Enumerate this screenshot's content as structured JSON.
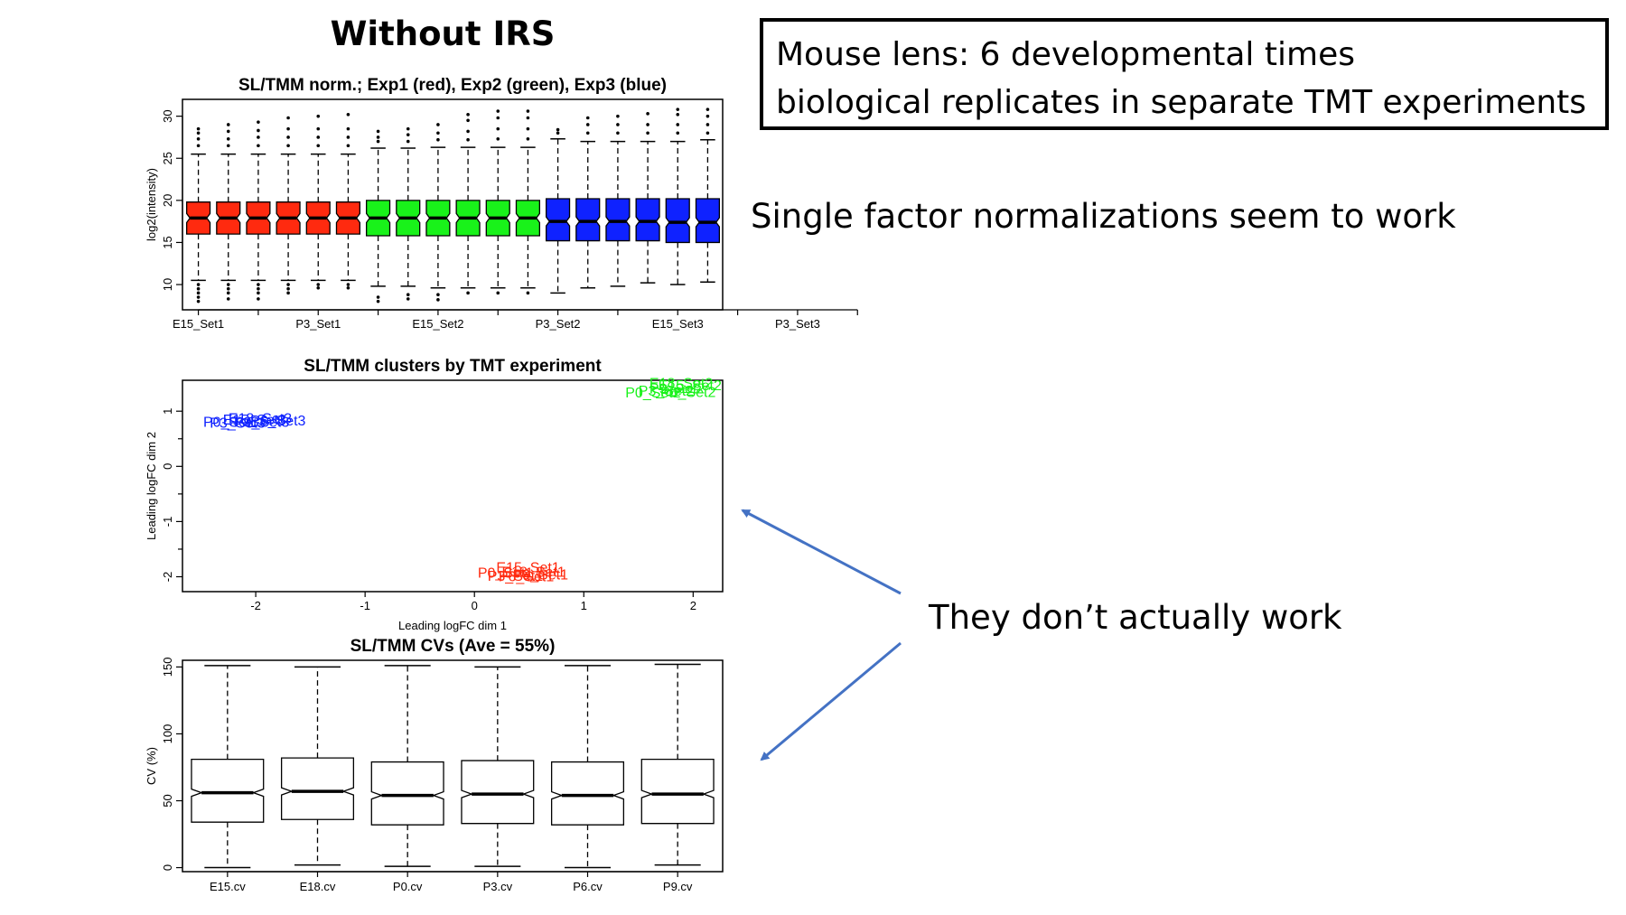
{
  "slide": {
    "title": "Without IRS",
    "box_lines": [
      "Mouse lens: 6 developmental times",
      "biological replicates in separate TMT experiments"
    ],
    "note": "Single factor normalizations seem to work",
    "callout": "They don’t actually work",
    "arrow_color": "#4472C4"
  },
  "chart_data": [
    {
      "type": "boxplot",
      "title": "SL/TMM norm.; Exp1 (red), Exp2 (green), Exp3 (blue)",
      "xlabel": "",
      "ylabel": "log2(intensity)",
      "ylim": [
        7,
        32
      ],
      "yticks": [
        10,
        15,
        20,
        25,
        30
      ],
      "xtick_labels": [
        "E15_Set1",
        "P3_Set1",
        "E15_Set2",
        "P3_Set2",
        "E15_Set3",
        "P3_Set3"
      ],
      "xtick_positions": [
        1,
        3,
        5,
        7,
        9,
        11,
        13,
        15,
        17,
        19,
        21,
        23
      ],
      "group_colors": [
        "#FF2A0F",
        "#19F21A",
        "#0F22FF"
      ],
      "groups": [
        0,
        0,
        0,
        0,
        0,
        0,
        1,
        1,
        1,
        1,
        1,
        1,
        2,
        2,
        2,
        2,
        2,
        2
      ],
      "boxes": [
        {
          "q1": 16.0,
          "median": 17.9,
          "q3": 19.8,
          "lw": 10.5,
          "uw": 25.5,
          "outliers_low": [
            10,
            9.5,
            9,
            8.5,
            8
          ],
          "outliers_high": [
            26.5,
            27.3,
            28.0,
            28.5
          ]
        },
        {
          "q1": 16.0,
          "median": 17.9,
          "q3": 19.8,
          "lw": 10.5,
          "uw": 25.5,
          "outliers_low": [
            10,
            9.5,
            9,
            8.3
          ],
          "outliers_high": [
            26.5,
            27.3,
            28.2,
            29.0
          ]
        },
        {
          "q1": 16.0,
          "median": 17.9,
          "q3": 19.8,
          "lw": 10.5,
          "uw": 25.5,
          "outliers_low": [
            10,
            9.5,
            9,
            8.3
          ],
          "outliers_high": [
            26.5,
            27.5,
            28.3,
            29.3
          ]
        },
        {
          "q1": 16.0,
          "median": 17.9,
          "q3": 19.8,
          "lw": 10.5,
          "uw": 25.5,
          "outliers_low": [
            10,
            9.5,
            9
          ],
          "outliers_high": [
            26.5,
            27.5,
            28.5,
            29.8
          ]
        },
        {
          "q1": 16.0,
          "median": 17.9,
          "q3": 19.8,
          "lw": 10.5,
          "uw": 25.5,
          "outliers_low": [
            10,
            9.6
          ],
          "outliers_high": [
            26.5,
            27.5,
            28.5,
            30.0
          ]
        },
        {
          "q1": 16.0,
          "median": 17.9,
          "q3": 19.8,
          "lw": 10.5,
          "uw": 25.5,
          "outliers_low": [
            10,
            9.6
          ],
          "outliers_high": [
            26.5,
            27.5,
            28.5,
            30.2
          ]
        },
        {
          "q1": 15.8,
          "median": 17.9,
          "q3": 20.0,
          "lw": 9.8,
          "uw": 26.2,
          "outliers_low": [
            8.5,
            8.0
          ],
          "outliers_high": [
            27.0,
            27.5,
            28.2
          ]
        },
        {
          "q1": 15.8,
          "median": 17.9,
          "q3": 20.0,
          "lw": 9.8,
          "uw": 26.2,
          "outliers_low": [
            8.8,
            8.3
          ],
          "outliers_high": [
            27.0,
            27.8,
            28.5
          ]
        },
        {
          "q1": 15.8,
          "median": 17.9,
          "q3": 20.0,
          "lw": 9.6,
          "uw": 26.3,
          "outliers_low": [
            8.8,
            8.2
          ],
          "outliers_high": [
            27.2,
            28.0,
            29.0
          ]
        },
        {
          "q1": 15.8,
          "median": 17.9,
          "q3": 20.0,
          "lw": 9.6,
          "uw": 26.3,
          "outliers_low": [
            9.0
          ],
          "outliers_high": [
            27.2,
            28.2,
            29.5,
            30.2
          ]
        },
        {
          "q1": 15.8,
          "median": 17.9,
          "q3": 20.0,
          "lw": 9.6,
          "uw": 26.3,
          "outliers_low": [
            9.0
          ],
          "outliers_high": [
            27.3,
            28.5,
            29.8,
            30.6
          ]
        },
        {
          "q1": 15.8,
          "median": 17.9,
          "q3": 20.0,
          "lw": 9.6,
          "uw": 26.3,
          "outliers_low": [
            9.0
          ],
          "outliers_high": [
            27.3,
            28.5,
            29.8,
            30.6
          ]
        },
        {
          "q1": 15.2,
          "median": 17.5,
          "q3": 20.2,
          "lw": 9.0,
          "uw": 27.3,
          "outliers_low": [],
          "outliers_high": [
            28.0,
            28.4
          ]
        },
        {
          "q1": 15.2,
          "median": 17.5,
          "q3": 20.2,
          "lw": 9.6,
          "uw": 27.0,
          "outliers_low": [],
          "outliers_high": [
            28.0,
            29.0,
            29.8
          ]
        },
        {
          "q1": 15.2,
          "median": 17.5,
          "q3": 20.2,
          "lw": 9.8,
          "uw": 27.0,
          "outliers_low": [],
          "outliers_high": [
            28.0,
            29.0,
            30.0
          ]
        },
        {
          "q1": 15.2,
          "median": 17.5,
          "q3": 20.2,
          "lw": 10.2,
          "uw": 27.0,
          "outliers_low": [],
          "outliers_high": [
            28.0,
            29.0,
            30.3
          ]
        },
        {
          "q1": 15.0,
          "median": 17.4,
          "q3": 20.2,
          "lw": 10.0,
          "uw": 27.0,
          "outliers_low": [],
          "outliers_high": [
            28.0,
            29.0,
            30.2,
            30.8
          ]
        },
        {
          "q1": 15.0,
          "median": 17.4,
          "q3": 20.2,
          "lw": 10.3,
          "uw": 27.2,
          "outliers_low": [],
          "outliers_high": [
            28.0,
            29.0,
            30.0,
            30.8
          ]
        }
      ]
    },
    {
      "type": "scatter",
      "title": "SL/TMM clusters by TMT experiment",
      "xlabel": "Leading logFC dim 1",
      "ylabel": "Leading logFC dim 2",
      "xlim": [
        -2.67,
        2.27
      ],
      "ylim": [
        -2.27,
        1.56
      ],
      "xticks": [
        -2,
        -1,
        0,
        1,
        2
      ],
      "yticks": [
        -2.0,
        -1.0,
        0.0,
        1.0
      ],
      "yminor": [
        -1.5,
        -0.5,
        0.5
      ],
      "points": [
        {
          "label": "E18_Set3",
          "x": -2.25,
          "y": 0.78,
          "group": 2
        },
        {
          "label": "E15_Set3",
          "x": -2.3,
          "y": 0.76,
          "group": 2
        },
        {
          "label": "P0_Set3",
          "x": -2.48,
          "y": 0.72,
          "group": 2
        },
        {
          "label": "P3_Set3",
          "x": -2.42,
          "y": 0.7,
          "group": 2
        },
        {
          "label": "P9_Set3",
          "x": -2.2,
          "y": 0.72,
          "group": 2
        },
        {
          "label": "P6_Set3",
          "x": -2.05,
          "y": 0.74,
          "group": 2
        },
        {
          "label": "E18_Set2",
          "x": 1.6,
          "y": 1.42,
          "group": 1
        },
        {
          "label": "E15_Set2",
          "x": 1.68,
          "y": 1.38,
          "group": 1
        },
        {
          "label": "P9_Set2",
          "x": 1.6,
          "y": 1.32,
          "group": 1
        },
        {
          "label": "P3_Set2",
          "x": 1.5,
          "y": 1.28,
          "group": 1
        },
        {
          "label": "P6_Set2",
          "x": 1.7,
          "y": 1.26,
          "group": 1
        },
        {
          "label": "P0_Set2",
          "x": 1.38,
          "y": 1.25,
          "group": 1
        },
        {
          "label": "E15_Set1",
          "x": 0.2,
          "y": -1.92,
          "group": 0
        },
        {
          "label": "E18_Set1",
          "x": 0.25,
          "y": -2.0,
          "group": 0
        },
        {
          "label": "P0_Set1",
          "x": 0.03,
          "y": -2.02,
          "group": 0
        },
        {
          "label": "P3_Set1",
          "x": 0.12,
          "y": -2.07,
          "group": 0
        },
        {
          "label": "P6_Set1",
          "x": 0.22,
          "y": -2.08,
          "group": 0
        },
        {
          "label": "P9_Set1",
          "x": 0.35,
          "y": -2.05,
          "group": 0
        }
      ]
    },
    {
      "type": "boxplot",
      "title": "SL/TMM CVs (Ave = 55%)",
      "xlabel": "",
      "ylabel": "CV (%)",
      "ylim": [
        -3,
        155
      ],
      "yticks": [
        0,
        50,
        100,
        150
      ],
      "xtick_labels": [
        "E15.cv",
        "E18.cv",
        "P0.cv",
        "P3.cv",
        "P6.cv",
        "P9.cv"
      ],
      "boxes": [
        {
          "q1": 34,
          "median": 56,
          "q3": 81,
          "lw": 0,
          "uw": 151
        },
        {
          "q1": 36,
          "median": 57,
          "q3": 82,
          "lw": 2,
          "uw": 150
        },
        {
          "q1": 32,
          "median": 54,
          "q3": 79,
          "lw": 1,
          "uw": 151
        },
        {
          "q1": 33,
          "median": 55,
          "q3": 80,
          "lw": 1,
          "uw": 150
        },
        {
          "q1": 32,
          "median": 54,
          "q3": 79,
          "lw": 0,
          "uw": 151
        },
        {
          "q1": 33,
          "median": 55,
          "q3": 81,
          "lw": 2,
          "uw": 152
        }
      ]
    }
  ]
}
